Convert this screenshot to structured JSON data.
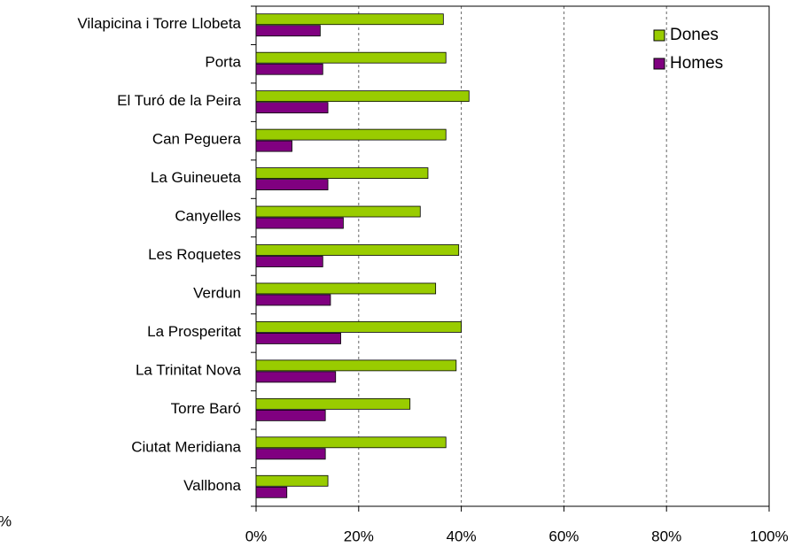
{
  "chart_data": {
    "type": "bar",
    "orientation": "horizontal",
    "categories": [
      "Vilapicina i Torre Llobeta",
      "Porta",
      "El Turó de la Peira",
      "Can Peguera",
      "La Guineueta",
      "Canyelles",
      "Les Roquetes",
      "Verdun",
      "La Prosperitat",
      "La Trinitat Nova",
      "Torre Baró",
      "Ciutat Meridiana",
      "Vallbona"
    ],
    "series": [
      {
        "name": "Dones",
        "color": "#99cc00",
        "values": [
          36.5,
          37,
          41.5,
          37,
          33.5,
          32,
          39.5,
          35,
          40,
          39,
          30,
          37,
          14
        ]
      },
      {
        "name": "Homes",
        "color": "#800080",
        "values": [
          12.5,
          13,
          14,
          7,
          14,
          17,
          13,
          14.5,
          16.5,
          15.5,
          13.5,
          13.5,
          6
        ]
      }
    ],
    "xlim": [
      0,
      100
    ],
    "xticks": [
      {
        "value": 0,
        "label": "0%"
      },
      {
        "value": 20,
        "label": "20%"
      },
      {
        "value": 40,
        "label": "40%"
      },
      {
        "value": 60,
        "label": "60%"
      },
      {
        "value": 80,
        "label": "80%"
      },
      {
        "value": 100,
        "label": "100%"
      }
    ],
    "grid": true,
    "legend": "upper right",
    "annotation": "%"
  }
}
